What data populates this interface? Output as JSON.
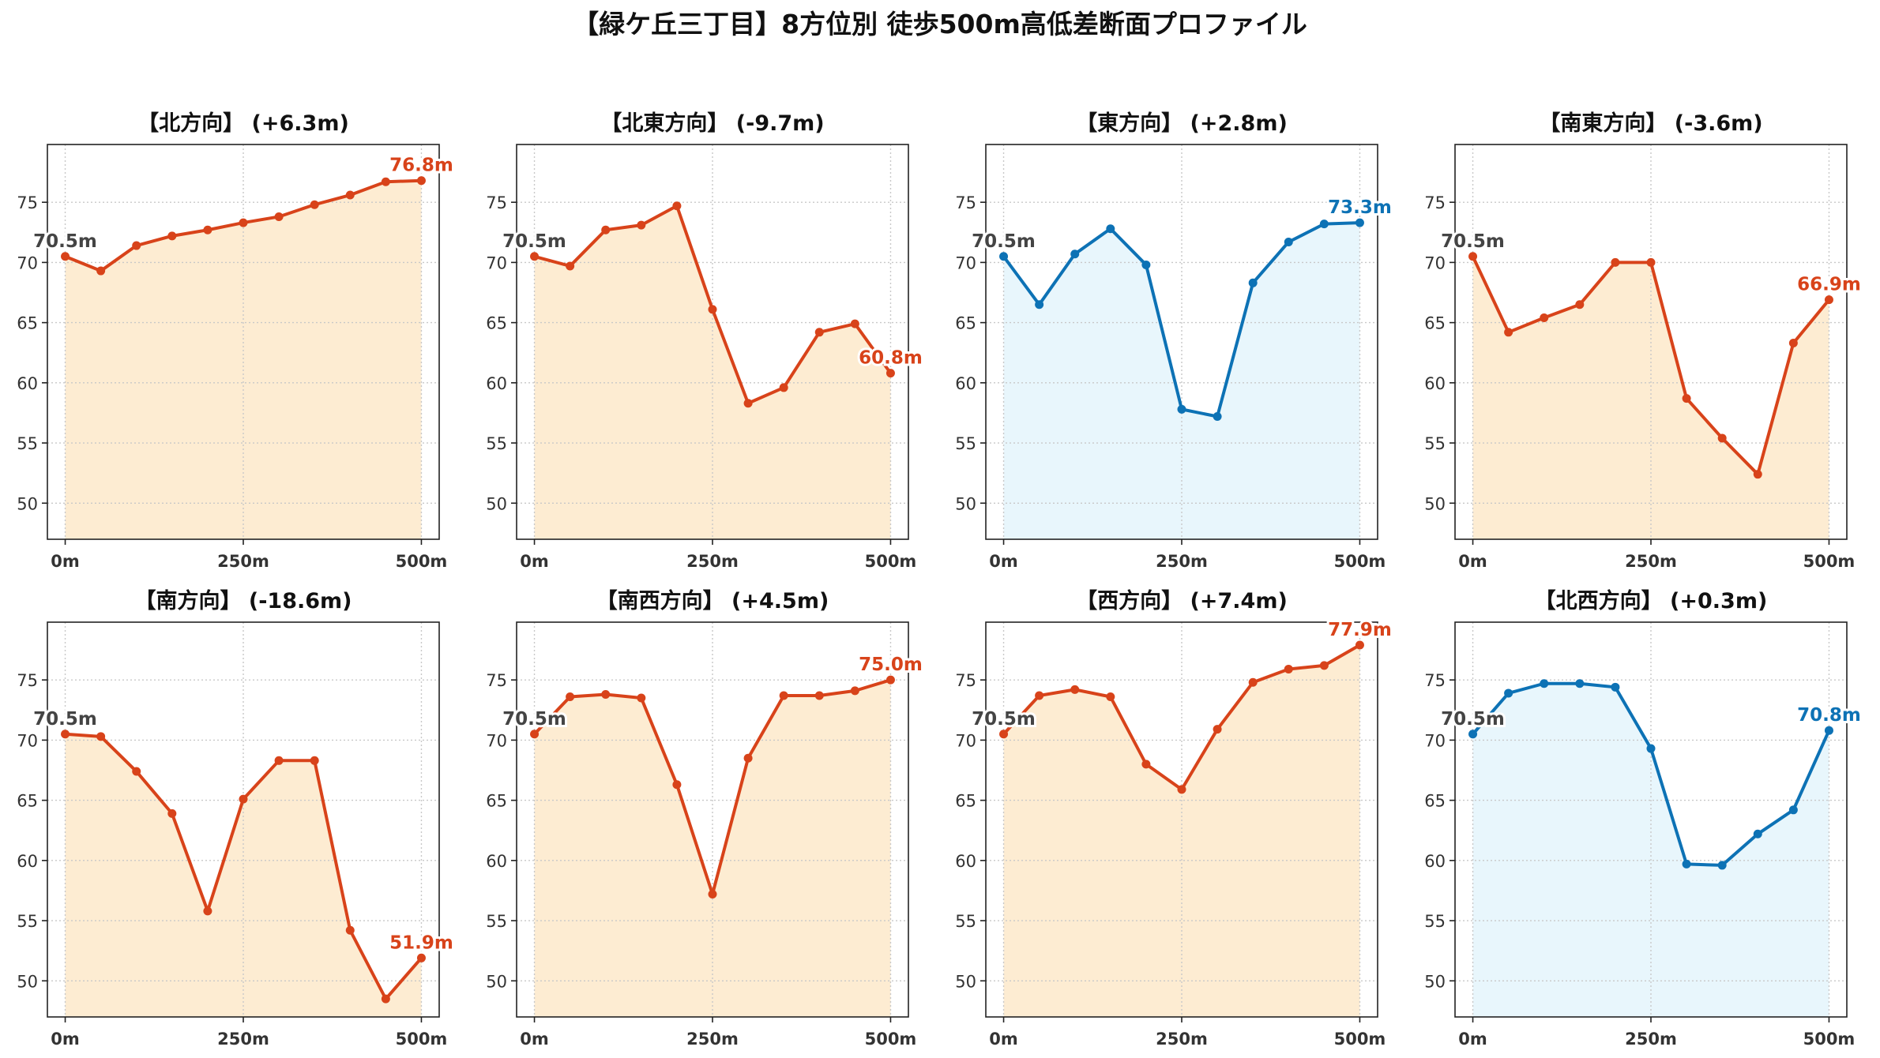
{
  "chart_data": {
    "type": "line",
    "title": "【緑ケ丘三丁目】8方位別 徒歩500m高低差断面プロファイル",
    "x": [
      0,
      50,
      100,
      150,
      200,
      250,
      300,
      350,
      400,
      450,
      500
    ],
    "x_tick_values": [
      0,
      250,
      500
    ],
    "x_tick_labels": [
      "0m",
      "250m",
      "500m"
    ],
    "xlim": [
      -25,
      525
    ],
    "y_ticks": [
      50,
      55,
      60,
      65,
      70,
      75
    ],
    "ylim": [
      47,
      79.8
    ],
    "grid": true,
    "start_label": "70.5m",
    "colors": {
      "red_line": "#d8431a",
      "red_fill": "#fdecd2",
      "blue_line": "#0d72b5",
      "blue_fill": "#e8f6fc",
      "grid": "#c8c8c8",
      "start_label": "#444444"
    },
    "panels": [
      {
        "title": "【北方向】 (+6.3m)",
        "theme": "red",
        "end_label": "76.8m",
        "values": [
          70.5,
          69.3,
          71.4,
          72.2,
          72.7,
          73.3,
          73.8,
          74.8,
          75.6,
          76.7,
          76.8
        ]
      },
      {
        "title": "【北東方向】 (-9.7m)",
        "theme": "red",
        "end_label": "60.8m",
        "values": [
          70.5,
          69.7,
          72.7,
          73.1,
          74.7,
          66.1,
          58.3,
          59.6,
          64.2,
          64.9,
          60.8
        ]
      },
      {
        "title": "【東方向】 (+2.8m)",
        "theme": "blue",
        "end_label": "73.3m",
        "values": [
          70.5,
          66.5,
          70.7,
          72.8,
          69.8,
          57.8,
          57.2,
          68.3,
          71.7,
          73.2,
          73.3
        ]
      },
      {
        "title": "【南東方向】 (-3.6m)",
        "theme": "red",
        "end_label": "66.9m",
        "values": [
          70.5,
          64.2,
          65.4,
          66.5,
          70.0,
          70.0,
          58.7,
          55.4,
          52.4,
          63.3,
          66.9
        ]
      },
      {
        "title": "【南方向】 (-18.6m)",
        "theme": "red",
        "end_label": "51.9m",
        "values": [
          70.5,
          70.3,
          67.4,
          63.9,
          55.8,
          65.1,
          68.3,
          68.3,
          54.2,
          48.5,
          51.9
        ]
      },
      {
        "title": "【南西方向】 (+4.5m)",
        "theme": "red",
        "end_label": "75.0m",
        "values": [
          70.5,
          73.6,
          73.8,
          73.5,
          66.3,
          57.2,
          68.5,
          73.7,
          73.7,
          74.1,
          75.0
        ]
      },
      {
        "title": "【西方向】 (+7.4m)",
        "theme": "red",
        "end_label": "77.9m",
        "values": [
          70.5,
          73.7,
          74.2,
          73.6,
          68.0,
          65.9,
          70.9,
          74.8,
          75.9,
          76.2,
          77.9
        ]
      },
      {
        "title": "【北西方向】 (+0.3m)",
        "theme": "blue",
        "end_label": "70.8m",
        "values": [
          70.5,
          73.9,
          74.7,
          74.7,
          74.4,
          69.3,
          59.7,
          59.6,
          62.2,
          64.2,
          70.8
        ]
      }
    ]
  }
}
